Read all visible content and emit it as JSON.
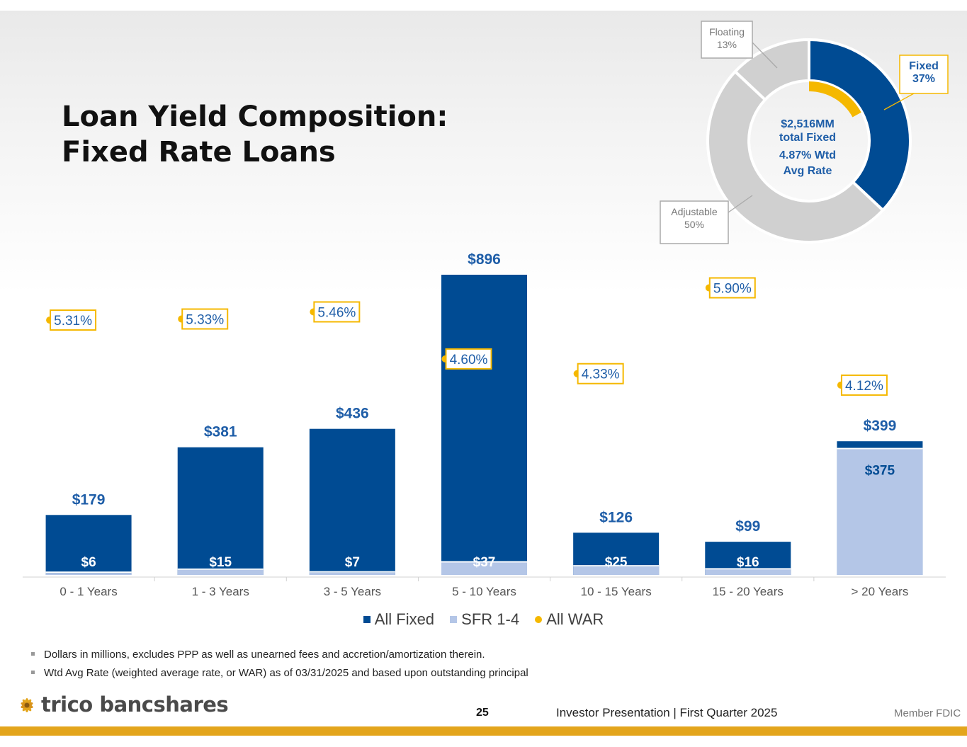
{
  "title_lines": [
    "Loan Yield Composition:",
    "Fixed Rate Loans"
  ],
  "colors": {
    "all_fixed": "#004b93",
    "sfr": "#b4c6e7",
    "war": "#f5b800",
    "donut_gray": "#d0d0d0",
    "accent_text": "#1f5ea8",
    "bottom_bar": "#e3a51c"
  },
  "chart_data": {
    "type": "bar",
    "units": "$ millions",
    "categories": [
      "0 - 1 Years",
      "1 - 3 Years",
      "3 - 5 Years",
      "5 - 10 Years",
      "10 - 15 Years",
      "15 - 20 Years",
      "> 20 Years"
    ],
    "series": [
      {
        "name": "All Fixed",
        "values": [
          179,
          381,
          436,
          896,
          126,
          99,
          399
        ],
        "labels": [
          "$179",
          "$381",
          "$436",
          "$896",
          "$126",
          "$99",
          "$399"
        ]
      },
      {
        "name": "SFR 1-4",
        "values": [
          6,
          15,
          7,
          37,
          25,
          16,
          375
        ],
        "labels": [
          "$6",
          "$15",
          "$7",
          "$37",
          "$25",
          "$16",
          "$375"
        ]
      },
      {
        "name": "All WAR",
        "values": [
          5.31,
          5.33,
          5.46,
          4.6,
          4.33,
          5.9,
          4.12
        ],
        "labels": [
          "5.31%",
          "5.33%",
          "5.46%",
          "4.60%",
          "4.33%",
          "5.90%",
          "4.12%"
        ]
      }
    ],
    "ylim": [
      0,
      900
    ],
    "legend": "bottom-center"
  },
  "donut": {
    "type": "pie",
    "slices": [
      {
        "name": "Fixed",
        "percent": 37,
        "label": "Fixed",
        "pct_label": "37%"
      },
      {
        "name": "Adjustable",
        "percent": 50,
        "label": "Adjustable",
        "pct_label": "50%"
      },
      {
        "name": "Floating",
        "percent": 13,
        "label": "Floating",
        "pct_label": "13%"
      }
    ],
    "inner_war_percent": 4.87,
    "center_lines": [
      "$2,516MM",
      "total Fixed",
      "4.87% Wtd",
      "Avg Rate"
    ]
  },
  "legend_items": [
    {
      "label": "All Fixed",
      "color": "#004b93",
      "shape": "square"
    },
    {
      "label": "SFR 1-4",
      "color": "#b4c6e7",
      "shape": "square"
    },
    {
      "label": "All WAR",
      "color": "#f5b800",
      "shape": "dot"
    }
  ],
  "footnotes": [
    "Dollars in millions, excludes PPP as well as unearned fees and accretion/amortization therein.",
    "Wtd Avg Rate (weighted average rate, or WAR) as of 03/31/2025 and based upon outstanding principal"
  ],
  "footer": {
    "brand": "trico bancshares",
    "page_number": "25",
    "presentation": "Investor Presentation  |  First Quarter 2025",
    "fdic": "Member FDIC"
  }
}
